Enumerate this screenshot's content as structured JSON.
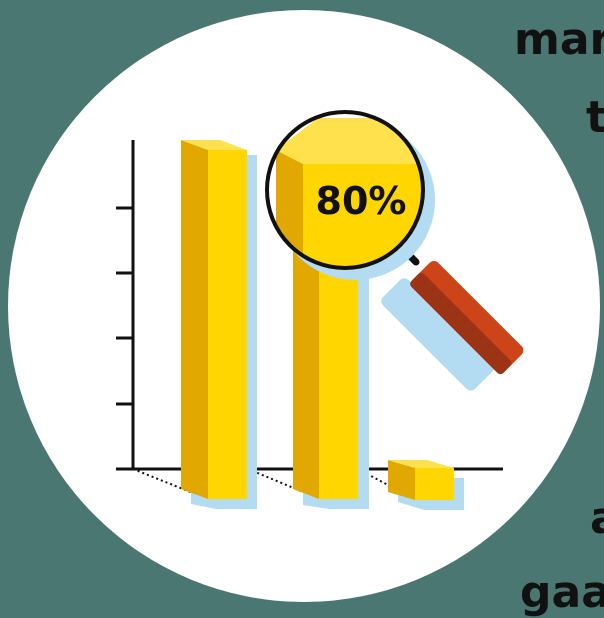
{
  "badge": {
    "label": "80%"
  },
  "side_text": [
    "mar",
    "t",
    "a",
    "gaa"
  ],
  "colors": {
    "background": "#4a7772",
    "circle": "#ffffff",
    "bar_front": "#ffd600",
    "bar_side": "#e0a800",
    "bar_top": "#ffe14d",
    "shadow": "#b3dcf3",
    "handle": "#cc4418",
    "handle_dark": "#9c3314",
    "ink": "#111111"
  },
  "icons": [
    "magnifying-glass-icon",
    "bar-chart-icon"
  ]
}
